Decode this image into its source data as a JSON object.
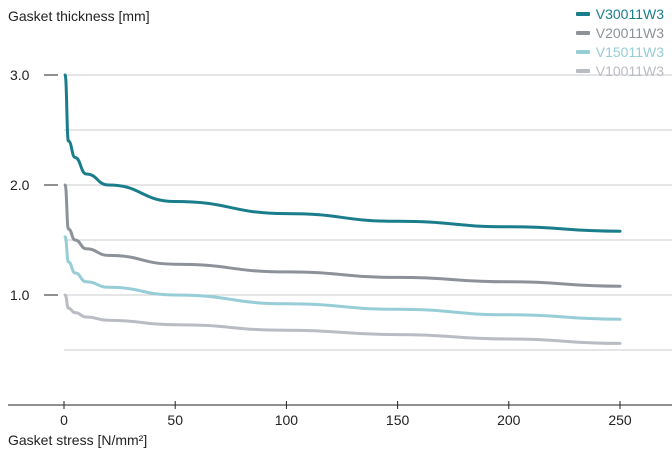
{
  "chart_data": {
    "type": "line",
    "xlabel": "Gasket stress [N/mm²]",
    "ylabel": "Gasket thickness [mm]",
    "xlim": [
      0,
      250
    ],
    "ylim": [
      0,
      3.0
    ],
    "x_ticks": [
      0,
      50,
      100,
      150,
      200,
      250
    ],
    "y_ticks": [
      1.0,
      2.0,
      3.0
    ],
    "y_tick_labels": [
      "1.0",
      "2.0",
      "3.0"
    ],
    "grid": true,
    "legend_position": "top-right",
    "x": [
      0.5,
      2,
      5,
      10,
      20,
      50,
      100,
      150,
      200,
      250
    ],
    "series": [
      {
        "name": "V30011W3",
        "color": "#1a7d8c",
        "values": [
          3.0,
          2.4,
          2.25,
          2.1,
          2.0,
          1.85,
          1.74,
          1.67,
          1.62,
          1.58
        ]
      },
      {
        "name": "V20011W3",
        "color": "#8d9299",
        "values": [
          2.0,
          1.6,
          1.5,
          1.42,
          1.36,
          1.28,
          1.21,
          1.16,
          1.12,
          1.08
        ]
      },
      {
        "name": "V15011W3",
        "color": "#97cdd6",
        "values": [
          1.53,
          1.3,
          1.2,
          1.12,
          1.07,
          1.0,
          0.92,
          0.87,
          0.82,
          0.78
        ]
      },
      {
        "name": "V10011W3",
        "color": "#b9bcc2",
        "values": [
          1.0,
          0.88,
          0.84,
          0.8,
          0.77,
          0.73,
          0.68,
          0.64,
          0.6,
          0.56
        ]
      }
    ]
  }
}
